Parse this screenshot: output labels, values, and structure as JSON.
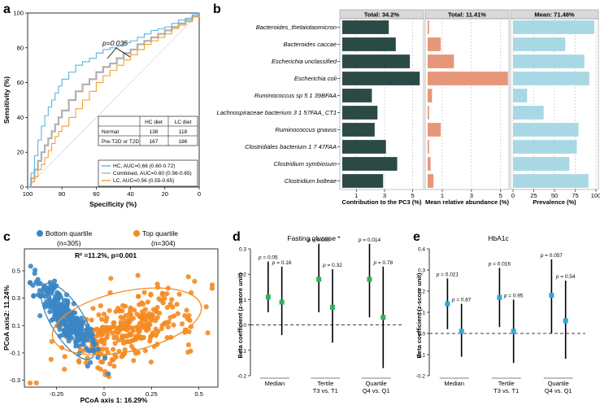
{
  "panels": {
    "a": {
      "label": "a",
      "xlabel": "Specificity (%)",
      "ylabel": "Sensitivity (%)",
      "pvalue": "p=0.035",
      "table": {
        "headers": [
          "",
          "HC diet",
          "LC diet"
        ],
        "rows": [
          [
            "Normal",
            "138",
            "118"
          ],
          [
            "Pre-T2D or T2D",
            "167",
            "186"
          ]
        ]
      }
    },
    "b": {
      "label": "b",
      "col1": {
        "header": "Total: 34.2%",
        "xlabel": "Contribution to the PC3 (%)",
        "color": "#2c4a45"
      },
      "col2": {
        "header": "Total: 11.41%",
        "xlabel": "Mean relative abundance (%)",
        "color": "#e8967a"
      },
      "col3": {
        "header": "Mean: 71.48%",
        "xlabel": "Prevalence (%)",
        "color": "#a8d8e4"
      }
    },
    "c": {
      "label": "c",
      "legend": [
        {
          "name": "Bottom quartile",
          "n": "(n=305)",
          "color": "#3b86c4"
        },
        {
          "name": "Top quartile",
          "n": "(n=304)",
          "color": "#f58a1f"
        }
      ],
      "stat": "R² =11.2%, p=0.001",
      "xlabel": "PCoA axis 1: 16.29%",
      "ylabel": "PCoA axis2: 11.24%"
    },
    "d": {
      "label": "d",
      "title": "Fasting glucose *",
      "marker_color": "#2fb35a"
    },
    "e": {
      "label": "e",
      "title": "HbA1c",
      "marker_color": "#2fa8d8"
    },
    "shared_de": {
      "ylabel": "Beta coefficient (z-score unit)",
      "groups": [
        {
          "line1": "Median",
          "line2": ""
        },
        {
          "line1": "Tertile",
          "line2": "T3 vs. T1"
        },
        {
          "line1": "Quartile",
          "line2": "Q4 vs. Q1"
        }
      ]
    }
  },
  "chart_data": [
    {
      "id": "a",
      "type": "line",
      "title": "",
      "xlabel": "Specificity (%)",
      "ylabel": "Sensitivity (%)",
      "x_reversed": true,
      "xlim": [
        0,
        100
      ],
      "ylim": [
        0,
        100
      ],
      "xticks": [
        "100",
        "80",
        "60",
        "40",
        "20",
        "0"
      ],
      "yticks": [
        "0",
        "20",
        "40",
        "60",
        "80",
        "100"
      ],
      "series": [
        {
          "name": "HC, AUC=0.66 (0.60-0.72)",
          "color": "#5ab4e0",
          "x": [
            100,
            98,
            96,
            94,
            92,
            90,
            88,
            86,
            84,
            82,
            80,
            76,
            72,
            68,
            64,
            60,
            56,
            52,
            48,
            44,
            40,
            36,
            32,
            28,
            24,
            20,
            16,
            12,
            8,
            4,
            0
          ],
          "y": [
            0,
            8,
            18,
            27,
            35,
            41,
            46,
            50,
            54,
            58,
            62,
            66,
            70,
            72,
            74,
            77,
            79,
            80,
            81,
            83,
            84,
            86,
            88,
            90,
            91,
            92,
            94,
            96,
            97,
            99,
            100
          ]
        },
        {
          "name": "Combined, AUC=0.60 (0.56-0.65)",
          "color": "#b0b0b0",
          "x": [
            100,
            98,
            96,
            94,
            92,
            90,
            88,
            86,
            84,
            82,
            80,
            76,
            72,
            68,
            64,
            60,
            56,
            52,
            48,
            44,
            40,
            36,
            32,
            28,
            24,
            20,
            16,
            12,
            8,
            4,
            0
          ],
          "y": [
            0,
            5,
            10,
            15,
            20,
            24,
            28,
            32,
            36,
            40,
            44,
            50,
            55,
            59,
            62,
            66,
            69,
            71,
            74,
            77,
            79,
            82,
            84,
            86,
            88,
            90,
            92,
            94,
            96,
            98,
            100
          ]
        },
        {
          "name": "LC, AUC=0.56 (0.55-0.65)",
          "color": "#f0a030",
          "x": [
            100,
            98,
            96,
            94,
            92,
            90,
            88,
            86,
            84,
            82,
            80,
            76,
            72,
            68,
            64,
            60,
            56,
            52,
            48,
            44,
            40,
            36,
            32,
            28,
            24,
            20,
            16,
            12,
            8,
            4,
            0
          ],
          "y": [
            0,
            3,
            6,
            10,
            13,
            17,
            21,
            25,
            29,
            32,
            35,
            40,
            45,
            50,
            55,
            60,
            64,
            67,
            70,
            73,
            76,
            79,
            82,
            84,
            86,
            88,
            91,
            93,
            95,
            98,
            100
          ]
        }
      ]
    },
    {
      "id": "b",
      "type": "bar",
      "orientation": "horizontal",
      "categories": [
        "Bacteroides_thetaiotaomicron",
        "Bacteroides caccae",
        "Escherichia unclassified",
        "Escherichia coli",
        "Ruminococcus sp 5 1 39BFAA",
        "Lachnospiraceae bacterium 3 1 57FAA_CT1",
        "Ruminococcus gnavus",
        "Clostridiales bacterium 1 7 47FAA",
        "Clostridium symbiosum",
        "Clostridium bolteae"
      ],
      "series": [
        {
          "name": "Contribution to the PC3 (%)",
          "xlim": [
            0,
            5.6
          ],
          "xticks": [
            1,
            3,
            5
          ],
          "values": [
            3.3,
            3.8,
            4.8,
            5.5,
            2.1,
            2.5,
            2.3,
            3.1,
            3.9,
            2.9
          ]
        },
        {
          "name": "Mean relative abundance (%)",
          "xlim": [
            0,
            5.4
          ],
          "xticks": [
            1,
            3,
            5
          ],
          "values": [
            0.1,
            0.9,
            1.8,
            5.5,
            0.3,
            0.1,
            0.9,
            0.1,
            0.2,
            0.4
          ]
        },
        {
          "name": "Prevalence (%)",
          "xlim": [
            0,
            100
          ],
          "xticks": [
            0,
            25,
            50,
            75,
            100
          ],
          "values": [
            98,
            63,
            86,
            92,
            17,
            37,
            79,
            77,
            68,
            91
          ]
        }
      ]
    },
    {
      "id": "c",
      "type": "scatter",
      "xlabel": "PCoA axis 1: 16.29%",
      "ylabel": "PCoA axis2: 11.24%",
      "xlim": [
        -0.42,
        0.6
      ],
      "ylim": [
        -0.35,
        0.66
      ],
      "xticks": [
        -0.25,
        0,
        0.25,
        0.5
      ],
      "yticks": [
        -0.3,
        -0.1,
        0.1,
        0.3,
        0.5
      ],
      "groups": [
        {
          "name": "Bottom quartile",
          "n": 305,
          "color": "#3b86c4",
          "center": [
            -0.2,
            0.16
          ],
          "spread": [
            0.08,
            0.12
          ]
        },
        {
          "name": "Top quartile",
          "n": 304,
          "color": "#f58a1f",
          "center": [
            0.13,
            0.08
          ],
          "spread": [
            0.18,
            0.12
          ]
        }
      ],
      "ellipses": [
        {
          "group": "Bottom quartile",
          "center": [
            -0.19,
            0.13
          ],
          "rx": 0.23,
          "ry": 0.12,
          "angle_deg": 58
        },
        {
          "group": "Top quartile",
          "center": [
            0.12,
            0.13
          ],
          "rx": 0.4,
          "ry": 0.22,
          "angle_deg": -12
        }
      ]
    },
    {
      "id": "d",
      "type": "errorbar",
      "title": "Fasting glucose *",
      "ylabel": "Beta coefficient (z-score unit)",
      "ylim": [
        -0.2,
        0.3
      ],
      "yticks": [
        -0.2,
        -0.1,
        0,
        0.1,
        0.2,
        0.3
      ],
      "points": [
        {
          "group": "Median",
          "est": 0.11,
          "lo": 0.05,
          "hi": 0.25,
          "p": "p = 0.05"
        },
        {
          "group": "Median",
          "est": 0.09,
          "lo": -0.04,
          "hi": 0.23,
          "p": "p = 0.16"
        },
        {
          "group": "Tertile",
          "est": 0.18,
          "lo": 0.05,
          "hi": 0.32,
          "p": "p = 0.005"
        },
        {
          "group": "Tertile",
          "est": 0.07,
          "lo": -0.07,
          "hi": 0.22,
          "p": "p = 0.32"
        },
        {
          "group": "Quartile",
          "est": 0.18,
          "lo": 0.03,
          "hi": 0.32,
          "p": "p = 0.014"
        },
        {
          "group": "Quartile",
          "est": 0.03,
          "lo": -0.17,
          "hi": 0.23,
          "p": "p = 0.78"
        }
      ]
    },
    {
      "id": "e",
      "type": "errorbar",
      "title": "HbA1c",
      "ylabel": "Beta coefficient (z-score unit)",
      "ylim": [
        -0.2,
        0.4
      ],
      "yticks": [
        -0.2,
        -0.1,
        0,
        0.1,
        0.2,
        0.3,
        0.4
      ],
      "points": [
        {
          "group": "Median",
          "est": 0.14,
          "lo": 0.02,
          "hi": 0.26,
          "p": "p = 0.021"
        },
        {
          "group": "Median",
          "est": 0.01,
          "lo": -0.11,
          "hi": 0.14,
          "p": "p = 0.87"
        },
        {
          "group": "Tertile",
          "est": 0.17,
          "lo": 0.03,
          "hi": 0.31,
          "p": "p = 0.016"
        },
        {
          "group": "Tertile",
          "est": 0.01,
          "lo": -0.14,
          "hi": 0.16,
          "p": "p = 0.95"
        },
        {
          "group": "Quartile",
          "est": 0.18,
          "lo": 0.0,
          "hi": 0.35,
          "p": "p = 0.057"
        },
        {
          "group": "Quartile",
          "est": 0.06,
          "lo": -0.12,
          "hi": 0.25,
          "p": "p = 0.54"
        }
      ]
    }
  ]
}
